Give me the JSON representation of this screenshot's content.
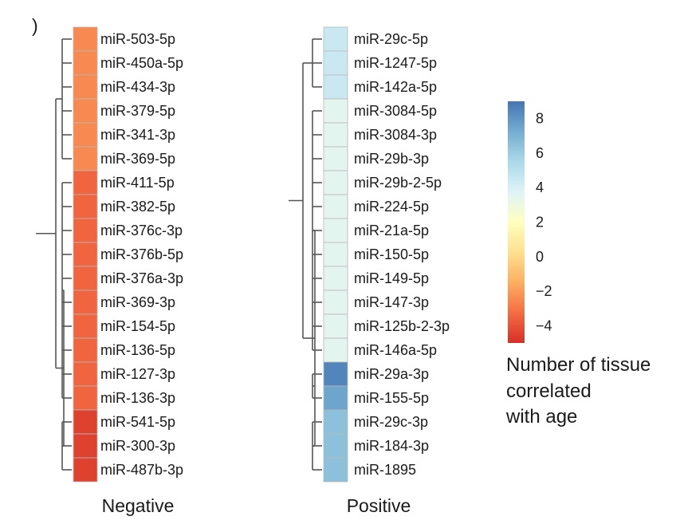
{
  "panel_mark": ")",
  "colorbar": {
    "title_lines": [
      "Number of tissue",
      "correlated",
      "with age"
    ],
    "ticks": [
      "8",
      "6",
      "4",
      "2",
      "0",
      "−2",
      "−4"
    ],
    "tick_values": [
      8,
      6,
      4,
      2,
      0,
      -2,
      -4
    ],
    "range": [
      -5,
      9
    ],
    "stops": [
      "#d73027",
      "#f46d43",
      "#fdae61",
      "#fee090",
      "#ffffbf",
      "#e0f3f8",
      "#abd9e9",
      "#74add1",
      "#4575b4"
    ]
  },
  "chart_data": [
    {
      "type": "heatmap",
      "title": "",
      "subtitle": "Negative",
      "rows": [
        "miR-503-5p",
        "miR-450a-5p",
        "miR-434-3p",
        "miR-379-5p",
        "miR-341-3p",
        "miR-369-5p",
        "miR-411-5p",
        "miR-382-5p",
        "miR-376c-3p",
        "miR-376b-5p",
        "miR-376a-3p",
        "miR-369-3p",
        "miR-154-5p",
        "miR-136-5p",
        "miR-127-3p",
        "miR-136-3p",
        "miR-541-5p",
        "miR-300-3p",
        "miR-487b-3p"
      ],
      "values": [
        -2.5,
        -2.5,
        -2.5,
        -2.5,
        -2.5,
        -2.5,
        -3.5,
        -3.5,
        -3.5,
        -3.5,
        -3.5,
        -3.5,
        -3.5,
        -3.5,
        -3.5,
        -3.5,
        -4.5,
        -4.5,
        -4.5
      ],
      "dendrogram": {
        "leaf_order": [
          0,
          1,
          2,
          3,
          4,
          5,
          6,
          7,
          8,
          9,
          10,
          11,
          12,
          13,
          14,
          15,
          16,
          17,
          18
        ],
        "groups": [
          [
            0,
            5
          ],
          [
            6,
            15
          ],
          [
            16,
            18
          ]
        ]
      }
    },
    {
      "type": "heatmap",
      "title": "",
      "subtitle": "Positive",
      "rows": [
        "miR-29c-5p",
        "miR-1247-5p",
        "miR-142a-5p",
        "miR-3084-5p",
        "miR-3084-3p",
        "miR-29b-3p",
        "miR-29b-2-5p",
        "miR-224-5p",
        "miR-21a-5p",
        "miR-150-5p",
        "miR-149-5p",
        "miR-147-3p",
        "miR-125b-2-3p",
        "miR-146a-5p",
        "miR-29a-3p",
        "miR-155-5p",
        "miR-29c-3p",
        "miR-184-3p",
        "miR-1895"
      ],
      "values": [
        4.5,
        4.5,
        4.5,
        3.5,
        3.5,
        3.5,
        3.5,
        3.5,
        3.5,
        3.5,
        3.5,
        3.5,
        3.5,
        3.5,
        8.5,
        7.5,
        6.5,
        6.5,
        6.5
      ],
      "dendrogram": {
        "leaf_order": [
          0,
          1,
          2,
          3,
          4,
          5,
          6,
          7,
          8,
          9,
          10,
          11,
          12,
          13,
          14,
          15,
          16,
          17,
          18
        ],
        "groups": [
          [
            0,
            2
          ],
          [
            3,
            13
          ],
          [
            14,
            15
          ],
          [
            16,
            18
          ]
        ]
      }
    }
  ]
}
